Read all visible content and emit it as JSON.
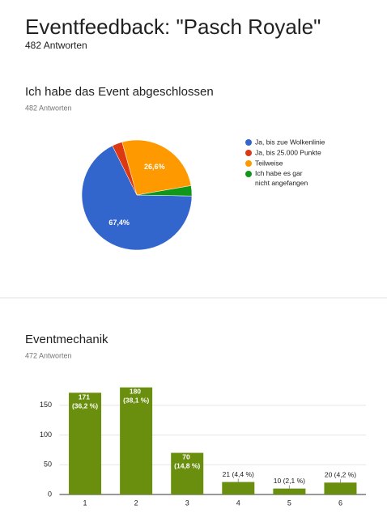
{
  "header": {
    "title": "Eventfeedback: \"Pasch Royale\"",
    "subtitle": "482 Antworten"
  },
  "chart_data": [
    {
      "type": "pie",
      "title": "Ich habe das Event abgeschlossen",
      "subtitle": "482 Antworten",
      "categories": [
        "Ja, bis zue Wolkenlinie",
        "Ja, bis 25.000 Punkte",
        "Teilweise",
        "Ich habe es gar nicht angefangen"
      ],
      "values": [
        67.4,
        3.0,
        26.6,
        3.0
      ],
      "value_labels": [
        "67,4%",
        null,
        "26,6%",
        null
      ],
      "colors": [
        "#3366cc",
        "#dc3912",
        "#ff9900",
        "#109618"
      ],
      "legend": "right"
    },
    {
      "type": "bar",
      "title": "Eventmechanik",
      "subtitle": "472 Antworten",
      "categories": [
        "1",
        "2",
        "3",
        "4",
        "5",
        "6"
      ],
      "values": [
        171,
        180,
        70,
        21,
        10,
        20
      ],
      "value_labels": [
        "171 (36,2 %)",
        "180 (38,1 %)",
        "70 (14,8 %)",
        "21 (4,4 %)",
        "10 (2,1 %)",
        "20 (4,2 %)"
      ],
      "color": "#6a8f0e",
      "ylim": [
        0,
        185
      ],
      "yticks": [
        0,
        50,
        100,
        150
      ],
      "grid": true
    }
  ]
}
